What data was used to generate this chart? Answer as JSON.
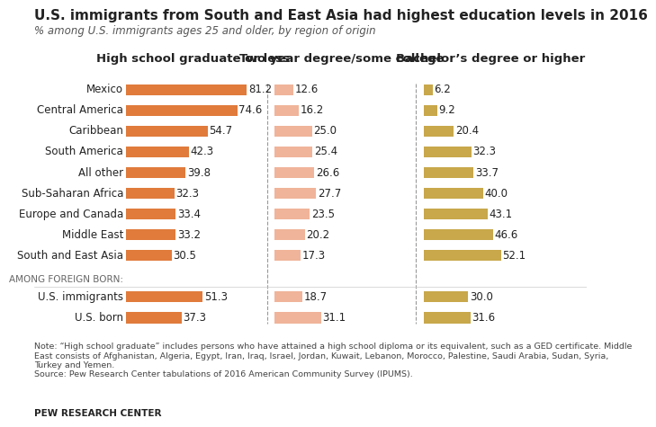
{
  "title": "U.S. immigrants from South and East Asia had highest education levels in 2016",
  "subtitle": "% among U.S. immigrants ages 25 and older, by region of origin",
  "categories": [
    "U.S. born",
    "U.S. immigrants",
    "AMONG FOREIGN BORN:",
    "South and East Asia",
    "Middle East",
    "Europe and Canada",
    "Sub-Saharan Africa",
    "All other",
    "South America",
    "Caribbean",
    "Central America",
    "Mexico"
  ],
  "col1_label": "High school graduate or less",
  "col2_label": "Two year degree/some college",
  "col3_label": "Bachelor’s degree or higher",
  "col1_values": [
    37.3,
    51.3,
    null,
    30.5,
    33.2,
    33.4,
    32.3,
    39.8,
    42.3,
    54.7,
    74.6,
    81.2
  ],
  "col2_values": [
    31.1,
    18.7,
    null,
    17.3,
    20.2,
    23.5,
    27.7,
    26.6,
    25.4,
    25.0,
    16.2,
    12.6
  ],
  "col3_values": [
    31.6,
    30.0,
    null,
    52.1,
    46.6,
    43.1,
    40.0,
    33.7,
    32.3,
    20.4,
    9.2,
    6.2
  ],
  "col1_color": "#E07B3C",
  "col2_color": "#F0B49A",
  "col3_color": "#C8A84B",
  "bar_max": 85,
  "note_text": "Note: “High school graduate” includes persons who have attained a high school diploma or its equivalent, such as a GED certificate. Middle\nEast consists of Afghanistan, Algeria, Egypt, Iran, Iraq, Israel, Jordan, Kuwait, Lebanon, Morocco, Palestine, Saudi Arabia, Sudan, Syria,\nTurkey and Yemen.\nSource: Pew Research Center tabulations of 2016 American Community Survey (IPUMS).",
  "source_label": "PEW RESEARCH CENTER",
  "bg_color": "#FFFFFF",
  "text_color": "#222222",
  "divider_color": "#999999",
  "label_fontsize": 8.5,
  "value_fontsize": 8.5,
  "col_header_fontsize": 9.5
}
